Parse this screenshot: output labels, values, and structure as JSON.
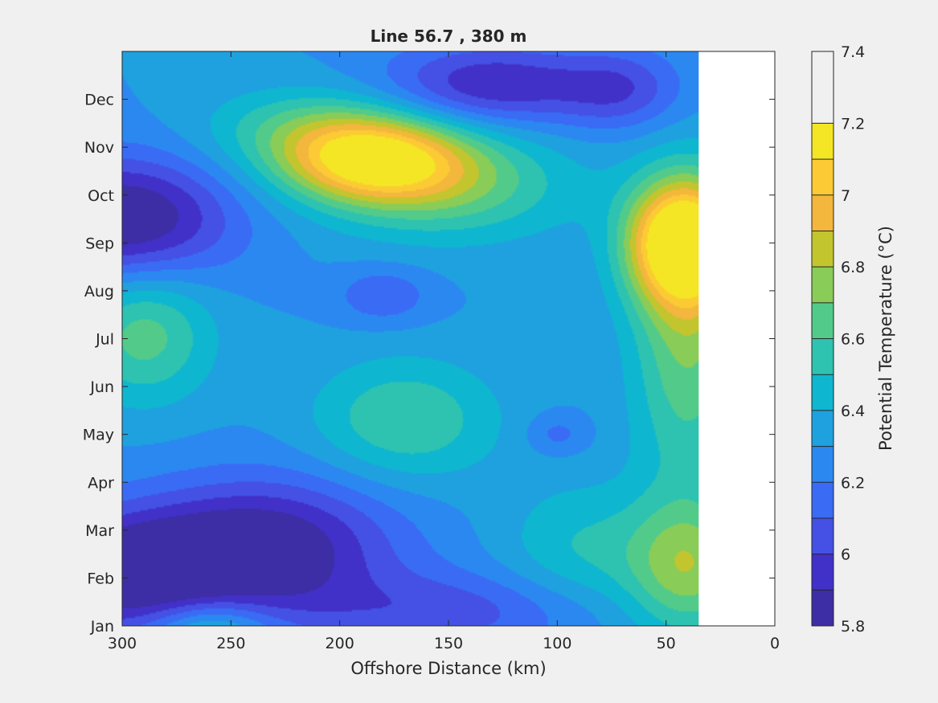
{
  "chart_data": {
    "type": "heatmap",
    "subtype": "filled-contour",
    "title": "Line 56.7 , 380 m",
    "xlabel": "Offshore Distance (km)",
    "ylabel": "",
    "xlim": [
      300,
      0
    ],
    "x_reversed": true,
    "x_ticks": [
      300,
      250,
      200,
      150,
      100,
      50,
      0
    ],
    "y_categories": [
      "Jan",
      "Feb",
      "Mar",
      "Apr",
      "May",
      "Jun",
      "Jul",
      "Aug",
      "Sep",
      "Oct",
      "Nov",
      "Dec"
    ],
    "ylim_months": [
      1,
      13
    ],
    "data_x_range_km": [
      300,
      35
    ],
    "colorbar": {
      "label": "Potential Temperature (°C)",
      "range": [
        5.8,
        7.4
      ],
      "step": 0.1,
      "tick_labels": [
        "5.8",
        "6",
        "6.2",
        "6.4",
        "6.6",
        "6.8",
        "7",
        "7.2",
        "7.4"
      ],
      "tick_values": [
        5.8,
        6.0,
        6.2,
        6.4,
        6.6,
        6.8,
        7.0,
        7.2,
        7.4
      ],
      "colors": [
        "#3d2ea6",
        "#4131c9",
        "#4451e4",
        "#3a6bf5",
        "#2c88f1",
        "#1fa1e0",
        "#0eb7cf",
        "#2ec3b0",
        "#52cb8a",
        "#89cc58",
        "#c3c52f",
        "#f2b73c",
        "#fcca34",
        "#f4e624"
      ]
    },
    "field_model": {
      "background": 6.3,
      "features": [
        {
          "x_km": 300,
          "month": 9.5,
          "amp": -0.55,
          "sx_km": 35,
          "sy_months": 0.9
        },
        {
          "x_km": 295,
          "month": 2.1,
          "amp": -0.55,
          "sx_km": 40,
          "sy_months": 0.9
        },
        {
          "x_km": 230,
          "month": 2.7,
          "amp": -0.45,
          "sx_km": 40,
          "sy_months": 1.0
        },
        {
          "x_km": 150,
          "month": 1.3,
          "amp": -0.25,
          "sx_km": 50,
          "sy_months": 0.6
        },
        {
          "x_km": 290,
          "month": 7.1,
          "amp": 0.35,
          "sx_km": 22,
          "sy_months": 1.0
        },
        {
          "x_km": 260,
          "month": 0.9,
          "amp": 0.35,
          "sx_km": 20,
          "sy_months": 0.5
        },
        {
          "x_km": 185,
          "month": 10.7,
          "amp": 0.75,
          "sx_km": 30,
          "sy_months": 0.6
        },
        {
          "x_km": 150,
          "month": 10.2,
          "amp": 0.35,
          "sx_km": 40,
          "sy_months": 0.8
        },
        {
          "x_km": 210,
          "month": 11.4,
          "amp": 0.3,
          "sx_km": 35,
          "sy_months": 0.6
        },
        {
          "x_km": 42,
          "month": 9.0,
          "amp": 1.0,
          "sx_km": 18,
          "sy_months": 0.9
        },
        {
          "x_km": 40,
          "month": 7.0,
          "amp": 0.4,
          "sx_km": 18,
          "sy_months": 2.2
        },
        {
          "x_km": 40,
          "month": 2.2,
          "amp": 0.45,
          "sx_km": 20,
          "sy_months": 1.0
        },
        {
          "x_km": 90,
          "month": 2.6,
          "amp": 0.2,
          "sx_km": 25,
          "sy_months": 1.0
        },
        {
          "x_km": 170,
          "month": 5.3,
          "amp": 0.3,
          "sx_km": 30,
          "sy_months": 0.9
        },
        {
          "x_km": 130,
          "month": 12.3,
          "amp": -0.4,
          "sx_km": 35,
          "sy_months": 0.6
        },
        {
          "x_km": 70,
          "month": 12.2,
          "amp": -0.25,
          "sx_km": 20,
          "sy_months": 0.6
        },
        {
          "x_km": 180,
          "month": 7.9,
          "amp": -0.2,
          "sx_km": 15,
          "sy_months": 0.4
        },
        {
          "x_km": 100,
          "month": 5.0,
          "amp": -0.15,
          "sx_km": 10,
          "sy_months": 0.3
        }
      ]
    }
  }
}
